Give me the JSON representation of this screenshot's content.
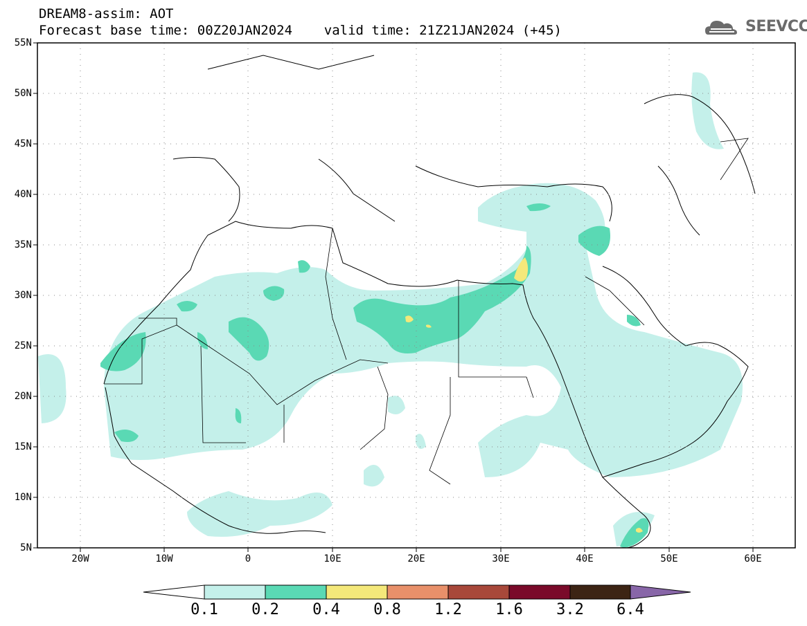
{
  "header": {
    "line1": "DREAM8-assim: AOT",
    "line2": "Forecast base time: 00Z20JAN2024    valid time: 21Z21JAN2024 (+45)"
  },
  "logo": {
    "text": "SEEVCCC",
    "icon": "cloud-icon"
  },
  "map": {
    "lat_ticks": [
      "55N",
      "50N",
      "45N",
      "40N",
      "35N",
      "30N",
      "25N",
      "20N",
      "15N",
      "10N",
      "5N"
    ],
    "lon_ticks": [
      "20W",
      "10W",
      "0",
      "10E",
      "20E",
      "30E",
      "40E",
      "50E",
      "60E"
    ],
    "lat_range": [
      5,
      55
    ],
    "lon_range": [
      -25,
      65
    ],
    "grid": "dotted"
  },
  "colorbar": {
    "labels": [
      "0.1",
      "0.2",
      "0.4",
      "0.8",
      "1.2",
      "1.6",
      "3.2",
      "6.4"
    ],
    "colors": [
      "#ffffff",
      "#c4f0ea",
      "#5ad9b4",
      "#f4e87a",
      "#e8906a",
      "#a8483a",
      "#7a0a2a",
      "#3c2414",
      "#8866a8"
    ]
  },
  "colors": {
    "level1": "#c4f0ea",
    "level2": "#5ad9b4",
    "level3": "#f4e87a"
  }
}
